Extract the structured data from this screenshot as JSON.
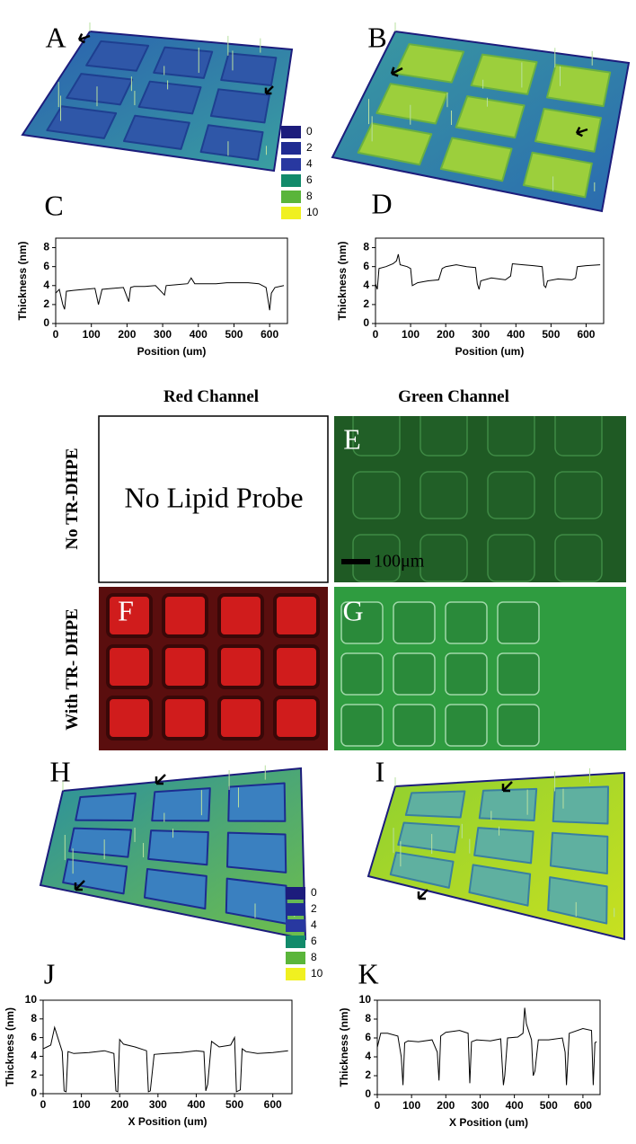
{
  "panel_labels": [
    "A",
    "B",
    "C",
    "D",
    "E",
    "F",
    "G",
    "H",
    "I",
    "J",
    "K"
  ],
  "channels": [
    "Red Channel",
    "Green Channel"
  ],
  "rows": [
    "No TR-DHPE",
    "With TR- DHPE"
  ],
  "placeholder": "No Lipid Probe",
  "scale_bar": "100μm",
  "color_scales": [
    [
      {
        "label": 0,
        "color": "#1c1c7c"
      },
      {
        "label": 2,
        "color": "#202c92"
      },
      {
        "label": 4,
        "color": "#2838a0"
      },
      {
        "label": 6,
        "color": "#128a6a"
      },
      {
        "label": 8,
        "color": "#5ab53a"
      },
      {
        "label": 10,
        "color": "#f0f020"
      }
    ],
    [
      {
        "label": 0,
        "color": "#1c1c7c"
      },
      {
        "label": 2,
        "color": "#202c92"
      },
      {
        "label": 4,
        "color": "#2838a0"
      },
      {
        "label": 6,
        "color": "#128a6a"
      },
      {
        "label": 8,
        "color": "#5ab53a"
      },
      {
        "label": 10,
        "color": "#f0f020"
      }
    ]
  ],
  "chart_data": [
    {
      "type": "line",
      "xlabel": "Position (um)",
      "ylabel": "Thickness (nm)",
      "color": "#000000",
      "xlim": [
        0,
        650
      ],
      "ylim": [
        0,
        9
      ],
      "xticks": [
        0,
        100,
        200,
        300,
        400,
        500,
        600
      ],
      "yticks": [
        0,
        2,
        4,
        6,
        8
      ],
      "x": [
        0,
        10,
        20,
        25,
        30,
        50,
        80,
        110,
        120,
        130,
        160,
        190,
        205,
        210,
        220,
        250,
        280,
        300,
        305,
        310,
        340,
        370,
        380,
        390,
        420,
        450,
        480,
        510,
        540,
        570,
        590,
        600,
        605,
        615,
        640
      ],
      "values": [
        3.2,
        3.6,
        2.0,
        1.5,
        3.4,
        3.5,
        3.6,
        3.7,
        2.0,
        3.6,
        3.7,
        3.8,
        2.3,
        3.8,
        3.9,
        3.9,
        4.0,
        3.2,
        3.0,
        4.0,
        4.1,
        4.2,
        4.8,
        4.2,
        4.2,
        4.2,
        4.3,
        4.3,
        4.3,
        4.2,
        3.8,
        1.4,
        3.2,
        3.8,
        4.0
      ]
    },
    {
      "type": "line",
      "xlabel": "Position (um)",
      "ylabel": "Thickness (nm)",
      "color": "#000000",
      "xlim": [
        0,
        650
      ],
      "ylim": [
        0,
        9
      ],
      "xticks": [
        0,
        100,
        200,
        300,
        400,
        500,
        600
      ],
      "yticks": [
        0,
        2,
        4,
        6,
        8
      ],
      "x": [
        0,
        5,
        10,
        30,
        50,
        60,
        65,
        70,
        90,
        100,
        105,
        120,
        150,
        180,
        190,
        200,
        230,
        260,
        285,
        290,
        295,
        300,
        330,
        370,
        385,
        390,
        420,
        450,
        475,
        480,
        485,
        490,
        520,
        560,
        570,
        575,
        600,
        640
      ],
      "values": [
        4.2,
        3.6,
        5.8,
        6.0,
        6.3,
        6.6,
        7.3,
        6.2,
        6.0,
        5.8,
        4.0,
        4.3,
        4.5,
        4.6,
        5.8,
        6.0,
        6.2,
        6.0,
        5.9,
        4.2,
        3.6,
        4.5,
        4.8,
        4.6,
        5.0,
        6.3,
        6.2,
        6.1,
        6.0,
        4.0,
        3.8,
        4.5,
        4.7,
        4.6,
        4.8,
        6.0,
        6.1,
        6.2
      ]
    },
    {
      "type": "line",
      "xlabel": "X Position (um)",
      "ylabel": "Thickness (nm)",
      "color": "#000000",
      "xlim": [
        0,
        650
      ],
      "ylim": [
        0,
        10
      ],
      "xticks": [
        0,
        100,
        200,
        300,
        400,
        500,
        600
      ],
      "yticks": [
        0,
        2,
        4,
        6,
        8,
        10
      ],
      "x": [
        0,
        10,
        20,
        30,
        40,
        50,
        55,
        60,
        65,
        80,
        120,
        160,
        185,
        190,
        195,
        200,
        210,
        240,
        270,
        275,
        280,
        290,
        320,
        360,
        400,
        420,
        425,
        430,
        440,
        460,
        490,
        500,
        505,
        515,
        520,
        530,
        560,
        600,
        640
      ],
      "values": [
        4.8,
        5.0,
        5.2,
        7.1,
        5.8,
        4.5,
        0.3,
        0.2,
        4.5,
        4.3,
        4.4,
        4.6,
        4.3,
        0.3,
        0.2,
        5.8,
        5.3,
        5.0,
        4.6,
        0.2,
        0.3,
        4.2,
        4.3,
        4.4,
        4.6,
        4.5,
        0.3,
        1.0,
        5.6,
        5.0,
        5.2,
        6.0,
        0.2,
        0.4,
        4.8,
        4.5,
        4.3,
        4.4,
        4.6
      ]
    },
    {
      "type": "line",
      "xlabel": "X Position (um)",
      "ylabel": "Thickness (nm)",
      "color": "#000000",
      "xlim": [
        0,
        650
      ],
      "ylim": [
        0,
        10
      ],
      "xticks": [
        0,
        100,
        200,
        300,
        400,
        500,
        600
      ],
      "yticks": [
        0,
        2,
        4,
        6,
        8,
        10
      ],
      "x": [
        0,
        10,
        30,
        60,
        70,
        75,
        80,
        90,
        120,
        160,
        175,
        180,
        185,
        200,
        240,
        265,
        270,
        275,
        290,
        330,
        360,
        368,
        372,
        380,
        410,
        425,
        430,
        435,
        450,
        455,
        460,
        470,
        500,
        540,
        548,
        552,
        560,
        600,
        625,
        630,
        635,
        640
      ],
      "values": [
        5.0,
        6.5,
        6.5,
        6.2,
        4.0,
        1.0,
        5.5,
        5.7,
        5.6,
        5.8,
        4.5,
        1.5,
        6.2,
        6.6,
        6.8,
        6.5,
        1.2,
        5.6,
        5.8,
        5.7,
        5.9,
        1.0,
        2.0,
        6.0,
        6.1,
        6.5,
        9.2,
        7.5,
        5.8,
        2.0,
        2.5,
        5.8,
        5.8,
        6.0,
        4.5,
        1.0,
        6.5,
        7.0,
        6.8,
        1.0,
        5.5,
        5.6
      ]
    }
  ]
}
